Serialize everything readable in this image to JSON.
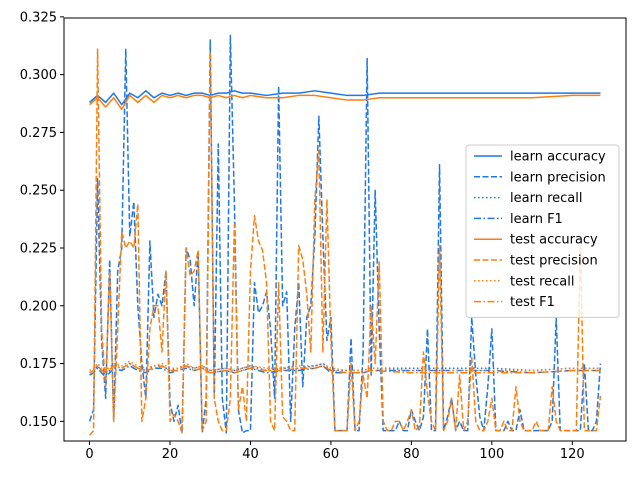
{
  "chart_data": {
    "type": "line",
    "title": "",
    "xlabel": "",
    "ylabel": "",
    "xlim": [
      -6.35,
      133.35
    ],
    "ylim": [
      0.1415,
      0.3245
    ],
    "xticks": [
      0,
      20,
      40,
      60,
      80,
      100,
      120
    ],
    "xtick_labels": [
      "0",
      "20",
      "40",
      "60",
      "80",
      "100",
      "120"
    ],
    "yticks": [
      0.15,
      0.175,
      0.2,
      0.225,
      0.25,
      0.275,
      0.3,
      0.325
    ],
    "ytick_labels": [
      "0.150",
      "0.175",
      "0.200",
      "0.225",
      "0.250",
      "0.275",
      "0.300",
      "0.325"
    ],
    "grid": false,
    "legend_position": "center-right",
    "colors": {
      "learn": "#1f77e8",
      "test": "#ff7f0e"
    },
    "series": [
      {
        "name": "learn accuracy",
        "color": "#1f77e8",
        "style": "solid",
        "x": [
          0,
          2,
          4,
          6,
          8,
          10,
          12,
          14,
          16,
          18,
          20,
          22,
          24,
          26,
          28,
          30,
          32,
          34,
          36,
          38,
          40,
          44,
          48,
          52,
          56,
          60,
          64,
          68,
          72,
          80,
          90,
          100,
          110,
          120,
          127
        ],
        "values": [
          0.288,
          0.291,
          0.288,
          0.292,
          0.287,
          0.292,
          0.29,
          0.293,
          0.29,
          0.292,
          0.291,
          0.292,
          0.291,
          0.292,
          0.292,
          0.291,
          0.292,
          0.292,
          0.293,
          0.292,
          0.292,
          0.291,
          0.292,
          0.292,
          0.293,
          0.292,
          0.291,
          0.291,
          0.292,
          0.292,
          0.292,
          0.292,
          0.292,
          0.292,
          0.292
        ]
      },
      {
        "name": "learn precision",
        "color": "#1f77e8",
        "style": "dashed",
        "x": [
          0,
          1,
          2,
          3,
          4,
          5,
          6,
          7,
          8,
          9,
          10,
          11,
          12,
          13,
          14,
          15,
          16,
          17,
          18,
          19,
          20,
          21,
          22,
          23,
          24,
          25,
          26,
          27,
          28,
          29,
          30,
          31,
          32,
          33,
          34,
          35,
          36,
          37,
          38,
          39,
          40,
          41,
          42,
          43,
          44,
          45,
          46,
          47,
          48,
          49,
          50,
          51,
          52,
          53,
          54,
          55,
          56,
          57,
          58,
          59,
          60,
          61,
          62,
          63,
          64,
          65,
          66,
          67,
          68,
          69,
          70,
          71,
          72,
          73,
          74,
          75,
          76,
          77,
          78,
          79,
          80,
          81,
          82,
          83,
          84,
          85,
          86,
          87,
          88,
          89,
          90,
          91,
          92,
          93,
          94,
          95,
          96,
          97,
          98,
          99,
          100,
          101,
          102,
          103,
          104,
          105,
          106,
          107,
          108,
          109,
          110,
          111,
          112,
          113,
          114,
          115,
          116,
          117,
          118,
          119,
          120,
          121,
          122,
          123,
          124,
          125,
          126,
          127
        ],
        "values": [
          0.15,
          0.155,
          0.255,
          0.185,
          0.16,
          0.22,
          0.15,
          0.215,
          0.225,
          0.311,
          0.23,
          0.245,
          0.2,
          0.175,
          0.16,
          0.228,
          0.195,
          0.205,
          0.2,
          0.215,
          0.158,
          0.15,
          0.157,
          0.145,
          0.225,
          0.22,
          0.2,
          0.223,
          0.145,
          0.16,
          0.315,
          0.16,
          0.27,
          0.16,
          0.145,
          0.317,
          0.245,
          0.155,
          0.145,
          0.146,
          0.146,
          0.21,
          0.197,
          0.2,
          0.206,
          0.19,
          0.16,
          0.295,
          0.2,
          0.206,
          0.15,
          0.19,
          0.21,
          0.165,
          0.195,
          0.2,
          0.23,
          0.282,
          0.23,
          0.185,
          0.195,
          0.146,
          0.146,
          0.146,
          0.146,
          0.186,
          0.146,
          0.146,
          0.18,
          0.307,
          0.17,
          0.25,
          0.19,
          0.146,
          0.146,
          0.146,
          0.146,
          0.15,
          0.146,
          0.146,
          0.155,
          0.15,
          0.146,
          0.152,
          0.19,
          0.146,
          0.146,
          0.261,
          0.146,
          0.152,
          0.16,
          0.146,
          0.15,
          0.146,
          0.146,
          0.195,
          0.17,
          0.152,
          0.146,
          0.165,
          0.19,
          0.146,
          0.146,
          0.146,
          0.15,
          0.146,
          0.146,
          0.155,
          0.146,
          0.146,
          0.146,
          0.146,
          0.146,
          0.146,
          0.146,
          0.15,
          0.195,
          0.146,
          0.146,
          0.146,
          0.146,
          0.146,
          0.146,
          0.175,
          0.146,
          0.146,
          0.15,
          0.175
        ]
      },
      {
        "name": "learn recall",
        "color": "#1f77e8",
        "style": "dotted",
        "x": [
          0,
          1,
          2,
          3,
          4,
          6,
          8,
          10,
          12,
          14,
          16,
          18,
          20,
          22,
          24,
          26,
          28,
          30,
          34,
          36,
          38,
          40,
          44,
          48,
          52,
          56,
          58,
          60,
          64,
          68,
          70,
          80,
          90,
          100,
          110,
          120,
          127
        ],
        "values": [
          0.171,
          0.172,
          0.174,
          0.172,
          0.17,
          0.174,
          0.173,
          0.175,
          0.173,
          0.172,
          0.174,
          0.174,
          0.172,
          0.173,
          0.174,
          0.173,
          0.174,
          0.172,
          0.173,
          0.172,
          0.173,
          0.174,
          0.172,
          0.173,
          0.173,
          0.174,
          0.175,
          0.172,
          0.172,
          0.172,
          0.173,
          0.173,
          0.173,
          0.173,
          0.172,
          0.173,
          0.173
        ]
      },
      {
        "name": "learn F1",
        "color": "#1f77e8",
        "style": "dashdot",
        "x": [
          0,
          1,
          2,
          3,
          4,
          6,
          8,
          10,
          12,
          14,
          16,
          18,
          20,
          22,
          24,
          26,
          28,
          30,
          34,
          36,
          38,
          40,
          44,
          48,
          52,
          56,
          58,
          60,
          64,
          68,
          70,
          80,
          90,
          100,
          110,
          120,
          127
        ],
        "values": [
          0.17,
          0.171,
          0.173,
          0.171,
          0.169,
          0.173,
          0.172,
          0.174,
          0.172,
          0.171,
          0.173,
          0.173,
          0.171,
          0.172,
          0.173,
          0.172,
          0.173,
          0.171,
          0.172,
          0.171,
          0.172,
          0.173,
          0.171,
          0.172,
          0.172,
          0.173,
          0.174,
          0.171,
          0.171,
          0.171,
          0.172,
          0.172,
          0.172,
          0.172,
          0.171,
          0.172,
          0.172
        ]
      },
      {
        "name": "test accuracy",
        "color": "#ff7f0e",
        "style": "solid",
        "x": [
          0,
          2,
          4,
          6,
          8,
          10,
          12,
          14,
          16,
          18,
          20,
          22,
          24,
          26,
          28,
          30,
          32,
          34,
          36,
          38,
          40,
          44,
          48,
          52,
          56,
          60,
          64,
          68,
          72,
          80,
          90,
          100,
          110,
          120,
          127
        ],
        "values": [
          0.287,
          0.29,
          0.286,
          0.29,
          0.285,
          0.291,
          0.288,
          0.291,
          0.288,
          0.291,
          0.29,
          0.291,
          0.29,
          0.291,
          0.291,
          0.29,
          0.291,
          0.29,
          0.291,
          0.29,
          0.291,
          0.29,
          0.29,
          0.291,
          0.291,
          0.29,
          0.289,
          0.289,
          0.29,
          0.29,
          0.29,
          0.29,
          0.29,
          0.291,
          0.291
        ]
      },
      {
        "name": "test precision",
        "color": "#ff7f0e",
        "style": "dashed",
        "x": [
          0,
          1,
          2,
          3,
          4,
          5,
          6,
          7,
          8,
          9,
          10,
          11,
          12,
          13,
          14,
          15,
          16,
          17,
          18,
          19,
          20,
          21,
          22,
          23,
          24,
          25,
          26,
          27,
          28,
          29,
          30,
          31,
          32,
          33,
          34,
          35,
          36,
          37,
          38,
          39,
          40,
          41,
          42,
          43,
          44,
          45,
          46,
          47,
          48,
          49,
          50,
          51,
          52,
          53,
          54,
          55,
          56,
          57,
          58,
          59,
          60,
          61,
          62,
          63,
          64,
          65,
          66,
          67,
          68,
          69,
          70,
          71,
          72,
          73,
          74,
          75,
          76,
          77,
          78,
          79,
          80,
          81,
          82,
          83,
          84,
          85,
          86,
          87,
          88,
          89,
          90,
          91,
          92,
          93,
          94,
          95,
          96,
          97,
          98,
          99,
          100,
          101,
          102,
          103,
          104,
          105,
          106,
          107,
          108,
          109,
          110,
          111,
          112,
          113,
          114,
          115,
          116,
          117,
          118,
          119,
          120,
          121,
          122,
          123,
          124,
          125,
          126,
          127
        ],
        "values": [
          0.144,
          0.146,
          0.311,
          0.19,
          0.165,
          0.215,
          0.15,
          0.19,
          0.232,
          0.225,
          0.228,
          0.225,
          0.244,
          0.15,
          0.16,
          0.19,
          0.2,
          0.2,
          0.18,
          0.215,
          0.15,
          0.153,
          0.15,
          0.145,
          0.225,
          0.213,
          0.215,
          0.224,
          0.146,
          0.15,
          0.31,
          0.16,
          0.15,
          0.146,
          0.146,
          0.16,
          0.235,
          0.155,
          0.165,
          0.15,
          0.215,
          0.239,
          0.228,
          0.224,
          0.21,
          0.15,
          0.146,
          0.21,
          0.152,
          0.15,
          0.146,
          0.146,
          0.226,
          0.22,
          0.205,
          0.18,
          0.246,
          0.267,
          0.18,
          0.246,
          0.185,
          0.146,
          0.146,
          0.146,
          0.146,
          0.175,
          0.146,
          0.15,
          0.17,
          0.16,
          0.2,
          0.175,
          0.219,
          0.15,
          0.146,
          0.146,
          0.15,
          0.15,
          0.146,
          0.15,
          0.155,
          0.146,
          0.148,
          0.18,
          0.162,
          0.15,
          0.146,
          0.226,
          0.146,
          0.15,
          0.16,
          0.146,
          0.17,
          0.146,
          0.15,
          0.178,
          0.15,
          0.146,
          0.146,
          0.15,
          0.16,
          0.146,
          0.146,
          0.15,
          0.146,
          0.146,
          0.165,
          0.15,
          0.146,
          0.146,
          0.146,
          0.15,
          0.146,
          0.146,
          0.146,
          0.165,
          0.15,
          0.146,
          0.146,
          0.146,
          0.146,
          0.146,
          0.226,
          0.146,
          0.146,
          0.146,
          0.146,
          0.161
        ]
      },
      {
        "name": "test recall",
        "color": "#ff7f0e",
        "style": "dotted",
        "x": [
          0,
          1,
          2,
          3,
          4,
          6,
          8,
          10,
          12,
          14,
          16,
          18,
          20,
          22,
          24,
          26,
          28,
          30,
          34,
          36,
          38,
          40,
          44,
          48,
          52,
          56,
          58,
          60,
          64,
          68,
          70,
          80,
          90,
          100,
          110,
          120,
          127
        ],
        "values": [
          0.172,
          0.173,
          0.175,
          0.173,
          0.172,
          0.175,
          0.174,
          0.176,
          0.174,
          0.173,
          0.174,
          0.175,
          0.173,
          0.173,
          0.175,
          0.173,
          0.174,
          0.172,
          0.173,
          0.172,
          0.173,
          0.174,
          0.173,
          0.173,
          0.174,
          0.174,
          0.175,
          0.173,
          0.172,
          0.172,
          0.173,
          0.172,
          0.172,
          0.172,
          0.172,
          0.173,
          0.173
        ]
      },
      {
        "name": "test F1",
        "color": "#ff7f0e",
        "style": "dashdot",
        "x": [
          0,
          1,
          2,
          3,
          4,
          6,
          8,
          10,
          12,
          14,
          16,
          18,
          20,
          22,
          24,
          26,
          28,
          30,
          34,
          36,
          38,
          40,
          44,
          48,
          52,
          56,
          58,
          60,
          64,
          68,
          70,
          80,
          90,
          100,
          110,
          120,
          127
        ],
        "values": [
          0.171,
          0.172,
          0.174,
          0.172,
          0.171,
          0.174,
          0.173,
          0.175,
          0.173,
          0.172,
          0.173,
          0.174,
          0.172,
          0.172,
          0.174,
          0.172,
          0.173,
          0.171,
          0.172,
          0.171,
          0.172,
          0.173,
          0.172,
          0.172,
          0.173,
          0.173,
          0.174,
          0.172,
          0.171,
          0.171,
          0.172,
          0.171,
          0.171,
          0.171,
          0.171,
          0.172,
          0.172
        ]
      }
    ]
  }
}
